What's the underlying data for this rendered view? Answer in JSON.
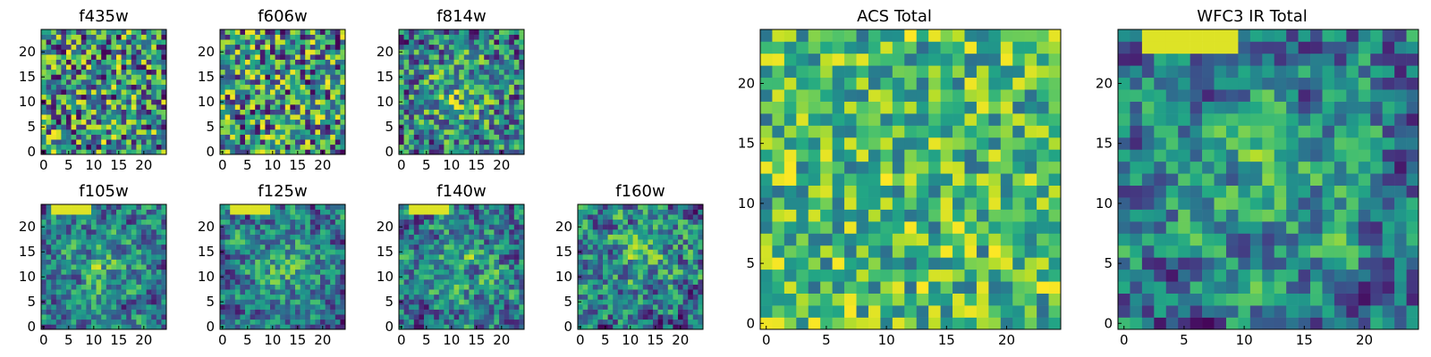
{
  "figure": {
    "colormap": "viridis",
    "value_range": [
      0,
      1
    ],
    "background": "#ffffff"
  },
  "chart_data": [
    {
      "type": "heatmap",
      "title": "f435w",
      "grid_size": 25,
      "seed": 11,
      "smooth": 0,
      "bias": "none",
      "xticks": [
        "0",
        "5",
        "10",
        "15",
        "20"
      ],
      "yticks": [
        "0",
        "5",
        "10",
        "15",
        "20"
      ]
    },
    {
      "type": "heatmap",
      "title": "f606w",
      "grid_size": 25,
      "seed": 23,
      "smooth": 0,
      "bias": "none",
      "xticks": [
        "0",
        "5",
        "10",
        "15",
        "20"
      ],
      "yticks": [
        "0",
        "5",
        "10",
        "15",
        "20"
      ]
    },
    {
      "type": "heatmap",
      "title": "f814w",
      "grid_size": 25,
      "seed": 37,
      "smooth": 0,
      "bias": "center",
      "xticks": [
        "0",
        "5",
        "10",
        "15",
        "20"
      ],
      "yticks": [
        "0",
        "5",
        "10",
        "15",
        "20"
      ]
    },
    {
      "type": "heatmap",
      "title": "f105w",
      "grid_size": 25,
      "seed": 41,
      "smooth": 1,
      "bias": "center-top",
      "xticks": [
        "0",
        "5",
        "10",
        "15",
        "20"
      ],
      "yticks": [
        "0",
        "5",
        "10",
        "15",
        "20"
      ]
    },
    {
      "type": "heatmap",
      "title": "f125w",
      "grid_size": 25,
      "seed": 53,
      "smooth": 1,
      "bias": "center-top",
      "xticks": [
        "0",
        "5",
        "10",
        "15",
        "20"
      ],
      "yticks": [
        "0",
        "5",
        "10",
        "15",
        "20"
      ]
    },
    {
      "type": "heatmap",
      "title": "f140w",
      "grid_size": 25,
      "seed": 67,
      "smooth": 1,
      "bias": "center-top",
      "xticks": [
        "0",
        "5",
        "10",
        "15",
        "20"
      ],
      "yticks": [
        "0",
        "5",
        "10",
        "15",
        "20"
      ]
    },
    {
      "type": "heatmap",
      "title": "f160w",
      "grid_size": 25,
      "seed": 79,
      "smooth": 1,
      "bias": "center-dark",
      "xticks": [
        "0",
        "5",
        "10",
        "15",
        "20"
      ],
      "yticks": [
        "0",
        "5",
        "10",
        "15",
        "20"
      ]
    },
    {
      "type": "heatmap",
      "title": "ACS Total",
      "grid_size": 25,
      "seed": 83,
      "smooth": 0,
      "bias": "bright",
      "xticks": [
        "0",
        "5",
        "10",
        "15",
        "20"
      ],
      "yticks": [
        "0",
        "5",
        "10",
        "15",
        "20"
      ]
    },
    {
      "type": "heatmap",
      "title": "WFC3 IR Total",
      "grid_size": 25,
      "seed": 97,
      "smooth": 1,
      "bias": "center-top",
      "xticks": [
        "0",
        "5",
        "10",
        "15",
        "20"
      ],
      "yticks": [
        "0",
        "5",
        "10",
        "15",
        "20"
      ]
    }
  ]
}
